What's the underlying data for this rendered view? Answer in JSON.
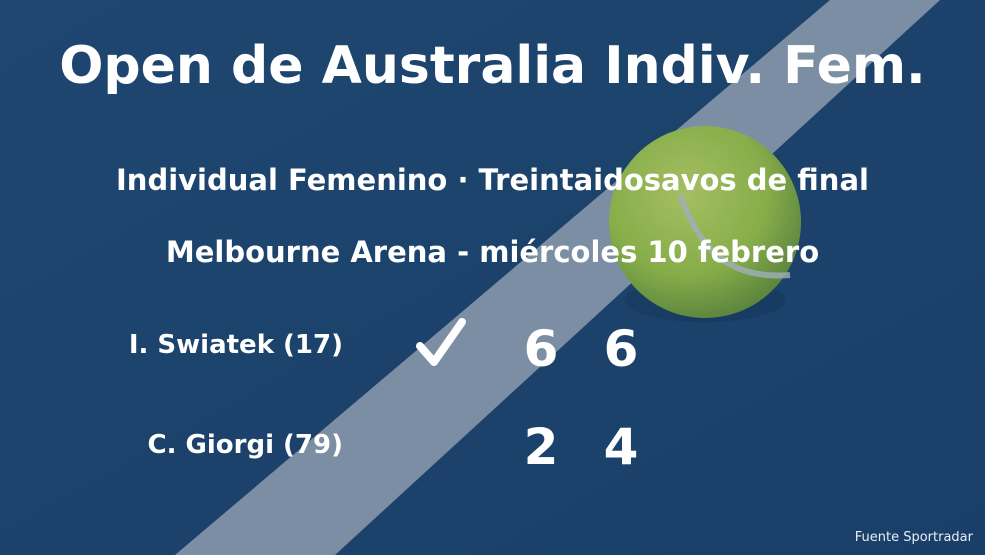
{
  "header": {
    "title": "Open de Australia Indiv. Fem.",
    "round": "Individual Femenino · Treintaidosavos de final",
    "venue_date": "Melbourne Arena - miércoles 10 febrero"
  },
  "match": {
    "players": [
      {
        "name": "I. Swiatek (17)",
        "winner": true,
        "sets": [
          "6",
          "6"
        ]
      },
      {
        "name": "C. Giorgi (79)",
        "winner": false,
        "sets": [
          "2",
          "4"
        ]
      }
    ]
  },
  "footer": {
    "source": "Fuente Sportradar"
  },
  "colors": {
    "court": "#24507c",
    "line": "#9fb0c0",
    "ball": "#c8e05a"
  }
}
